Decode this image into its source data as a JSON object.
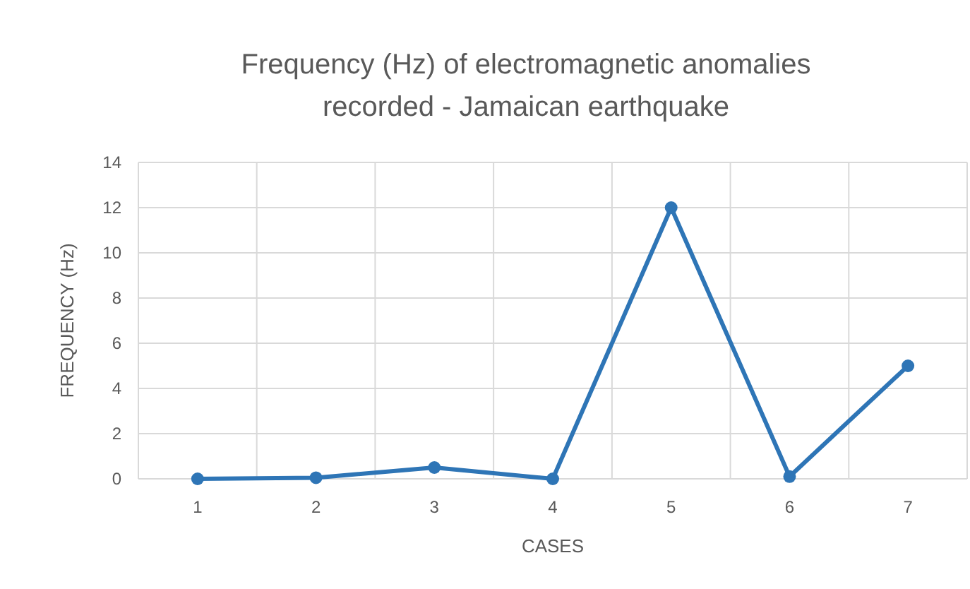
{
  "chart_data": {
    "type": "line",
    "title": "Frequency (Hz) of electromagnetic anomalies recorded - Jamaican earthquake",
    "xlabel": "CASES",
    "ylabel": "FREQUENCY (Hz)",
    "categories": [
      "1",
      "2",
      "3",
      "4",
      "5",
      "6",
      "7"
    ],
    "series": [
      {
        "color": "#2e75b6",
        "values": [
          0,
          0.05,
          0.5,
          0,
          12,
          0.1,
          5
        ]
      }
    ],
    "ylim": [
      0,
      14
    ],
    "yticks": [
      0,
      2,
      4,
      6,
      8,
      10,
      12,
      14
    ],
    "grid": true,
    "marker": "circle",
    "line_style": "solid"
  }
}
